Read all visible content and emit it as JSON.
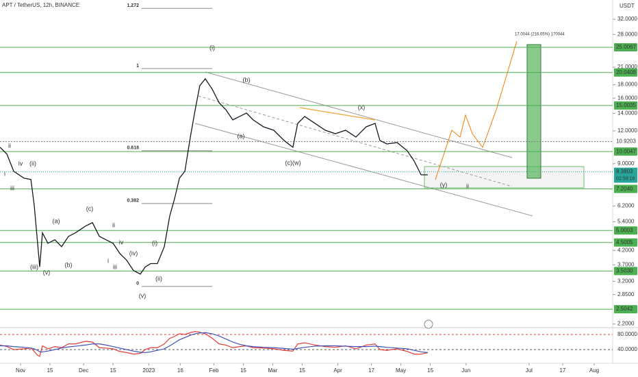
{
  "header": {
    "symbol": "APT / TetherUS, 12h, BINANCE",
    "currency": "USDT"
  },
  "chart_data": {
    "type": "line",
    "x": [
      -9.8,
      -6.5,
      -3.3,
      1.6,
      4.9,
      6.5,
      8.1,
      9.1,
      10.4,
      13.0,
      16.3,
      19.5,
      22.8,
      26.1,
      30.9,
      34.2,
      37.5,
      40.7,
      44.0,
      47.2,
      50.5,
      53.7,
      57.0,
      59.3,
      61.9,
      65.1,
      68.4,
      71.0,
      73.3,
      75.6,
      78.2,
      80.8,
      83.1,
      85.3,
      87.9,
      91.2,
      94.5,
      97.7,
      101.0,
      104.2,
      107.5,
      110.7,
      115.6,
      120.5,
      125.4,
      129.6,
      131.9,
      135.2,
      140.1,
      145.0,
      149.8,
      154.7,
      159.6,
      164.5,
      168.7,
      171.0,
      174.3,
      179.2,
      184.0,
      187.3,
      190.6,
      193.8
    ],
    "series": [
      {
        "color": "#131722",
        "values": [
          10.39,
          9.78,
          8.42,
          7.92,
          7.83,
          6.23,
          4.47,
          3.63,
          4.9,
          4.47,
          4.61,
          4.34,
          4.75,
          4.9,
          5.2,
          5.36,
          4.75,
          4.61,
          4.47,
          4.09,
          3.85,
          3.52,
          3.41,
          3.63,
          3.74,
          3.74,
          4.34,
          5.69,
          6.62,
          7.92,
          8.42,
          11.37,
          14.46,
          17.85,
          18.97,
          17.32,
          15.36,
          14.46,
          13.22,
          13.62,
          14.04,
          13.22,
          12.44,
          12.07,
          11.03,
          10.39,
          12.82,
          13.62,
          12.82,
          12.07,
          11.71,
          12.07,
          11.37,
          12.44,
          12.82,
          11.03,
          10.7,
          10.83,
          10.08,
          9.21,
          8.16,
          8.16
        ]
      }
    ],
    "xlim": [
      -9.8,
      281.8
    ],
    "xticks": [
      {
        "value": 0,
        "label": "Nov"
      },
      {
        "value": 14,
        "label": "15"
      },
      {
        "value": 30,
        "label": "Dec"
      },
      {
        "value": 44,
        "label": "15"
      },
      {
        "value": 61,
        "label": "2023"
      },
      {
        "value": 76,
        "label": "16"
      },
      {
        "value": 92,
        "label": "Feb"
      },
      {
        "value": 106,
        "label": "15"
      },
      {
        "value": 120,
        "label": "Mar"
      },
      {
        "value": 134,
        "label": "15"
      },
      {
        "value": 151,
        "label": "Apr"
      },
      {
        "value": 167,
        "label": "17"
      },
      {
        "value": 181,
        "label": "May"
      },
      {
        "value": 195,
        "label": "15"
      },
      {
        "value": 212,
        "label": "Jun"
      },
      {
        "value": 242,
        "label": "Jul"
      },
      {
        "value": 258,
        "label": "17"
      },
      {
        "value": 273,
        "label": "Aug"
      }
    ],
    "ylim": [
      2.13,
      37.9
    ],
    "log_scale": true,
    "yticks": [
      {
        "value": 32,
        "label": "32.0000"
      },
      {
        "value": 28,
        "label": "28.0000"
      },
      {
        "value": 21,
        "label": "21.0000"
      },
      {
        "value": 18,
        "label": "18.0000"
      },
      {
        "value": 16,
        "label": "16.0000"
      },
      {
        "value": 14,
        "label": "14.0000"
      },
      {
        "value": 12,
        "label": "12.0000"
      },
      {
        "value": 9,
        "label": "9.0000"
      },
      {
        "value": 6.2,
        "label": "6.2000"
      },
      {
        "value": 5.4,
        "label": "5.4000"
      },
      {
        "value": 4.2,
        "label": "4.2000"
      },
      {
        "value": 3.7,
        "label": "3.7000"
      },
      {
        "value": 3.2,
        "label": "3.2000"
      },
      {
        "value": 2.85,
        "label": "2.8500"
      },
      {
        "value": 2.2,
        "label": "2.2000"
      }
    ],
    "levels": [
      {
        "value": 25.0067,
        "label": "25.0067"
      },
      {
        "value": 20.0408,
        "label": "20.0408"
      },
      {
        "value": 15.0035,
        "label": "15.0035"
      },
      {
        "value": 10.0047,
        "label": "10.0047"
      },
      {
        "value": 7.204,
        "label": "7.2040"
      },
      {
        "value": 5.0003,
        "label": "5.0003"
      },
      {
        "value": 4.5005,
        "label": "4.5005"
      },
      {
        "value": 3.503,
        "label": "3.5030"
      },
      {
        "value": 2.5042,
        "label": "2.5042"
      }
    ],
    "dashed_level": {
      "value": 10.9203,
      "label": "10.9203"
    },
    "current_price": {
      "value": 8.3803,
      "label": "8.3803"
    },
    "countdown": "02:59:18",
    "fib_levels": [
      {
        "value": 35.2,
        "label": "1.272"
      },
      {
        "value": 20.75,
        "label": "1"
      },
      {
        "value": 10.08,
        "label": "0.618"
      },
      {
        "value": 6.34,
        "label": "0.382"
      },
      {
        "value": 3.06,
        "label": "0"
      }
    ],
    "wave_labels": [
      "(i)",
      "ii",
      "(x)",
      "(y)",
      "(b)",
      "(a)",
      "(c)(w)",
      "(c)",
      "(a)",
      "(b)",
      "(iii)",
      "(v)",
      "ii",
      "iv",
      "(ii)",
      "i",
      "iii",
      "i",
      "ii",
      "iii",
      "iv",
      "(iv)",
      "(v)",
      "(ii)",
      "(i)"
    ],
    "projection_label": "17.0044 (216.05%) 170044"
  },
  "rsi": {
    "type": "line",
    "series": [
      {
        "color": "#e53935",
        "values": [
          52,
          48,
          40,
          42,
          44,
          35,
          25,
          22,
          50,
          42,
          48,
          45,
          55,
          55,
          62,
          60,
          45,
          44,
          42,
          35,
          32,
          28,
          30,
          40,
          45,
          45,
          55,
          70,
          75,
          82,
          80,
          85,
          88,
          86,
          82,
          70,
          55,
          52,
          45,
          48,
          50,
          45,
          44,
          42,
          38,
          36,
          55,
          58,
          52,
          48,
          46,
          50,
          42,
          52,
          55,
          40,
          38,
          42,
          35,
          28,
          28,
          32
        ]
      },
      {
        "color": "#3f51b5",
        "values": [
          50,
          50,
          48,
          46,
          44,
          42,
          38,
          34,
          34,
          36,
          40,
          44,
          47,
          49,
          52,
          55,
          55,
          52,
          48,
          44,
          40,
          36,
          33,
          32,
          34,
          38,
          42,
          50,
          58,
          66,
          72,
          78,
          82,
          84,
          85,
          82,
          76,
          68,
          60,
          54,
          50,
          48,
          46,
          45,
          43,
          41,
          43,
          46,
          49,
          50,
          50,
          49,
          48,
          48,
          49,
          48,
          46,
          44,
          42,
          38,
          34,
          32
        ]
      }
    ],
    "ylim": [
      0,
      100
    ],
    "yticks": [
      {
        "value": 80,
        "label": "80.0000"
      },
      {
        "value": 40,
        "label": "40.0000"
      }
    ]
  }
}
